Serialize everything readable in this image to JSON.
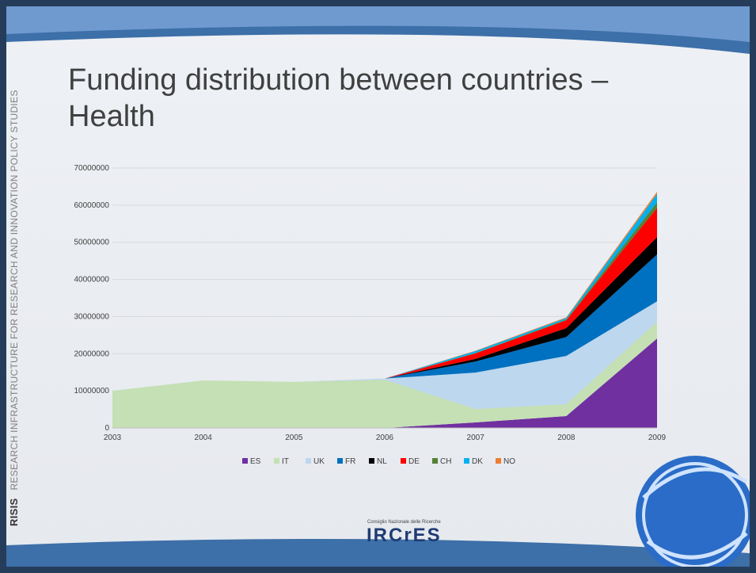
{
  "slide": {
    "side_text": "RESEARCH INFRASTRUCTURE FOR RESEARCH AND INNOVATION POLICY STUDIES",
    "side_brand": "RISIS",
    "logo_caption": "Consiglio Nazionale delle Ricerche",
    "logo_text": "IRCrES"
  },
  "chart_data": {
    "type": "area",
    "stacked": true,
    "title": "Funding distribution between countries – Health",
    "x": [
      2003,
      2004,
      2005,
      2006,
      2007,
      2008,
      2009
    ],
    "xlim": [
      2003,
      2009
    ],
    "xticks": [
      2003,
      2004,
      2005,
      2006,
      2007,
      2008,
      2009
    ],
    "ylim": [
      0,
      70000000
    ],
    "yticks": [
      0,
      10000000,
      20000000,
      30000000,
      40000000,
      50000000,
      60000000,
      70000000
    ],
    "grid": true,
    "legend": "bottom",
    "series": [
      {
        "name": "ES",
        "color": "#7030a0",
        "values": [
          0,
          0,
          0,
          0,
          1500000,
          3200000,
          24100000
        ]
      },
      {
        "name": "IT",
        "color": "#c4e0b4",
        "values": [
          10000000,
          12800000,
          12400000,
          13000000,
          3600000,
          3200000,
          4500000
        ]
      },
      {
        "name": "UK",
        "color": "#bdd7ee",
        "values": [
          0,
          0,
          0,
          300000,
          9800000,
          13000000,
          5500000
        ]
      },
      {
        "name": "FR",
        "color": "#0070c0",
        "values": [
          0,
          0,
          0,
          0,
          3000000,
          5100000,
          12600000
        ]
      },
      {
        "name": "NL",
        "color": "#000000",
        "values": [
          0,
          0,
          0,
          0,
          700000,
          2400000,
          4700000
        ]
      },
      {
        "name": "DE",
        "color": "#ff0000",
        "values": [
          0,
          0,
          0,
          0,
          1500000,
          2100000,
          7900000
        ]
      },
      {
        "name": "CH",
        "color": "#548235",
        "values": [
          0,
          0,
          0,
          0,
          100000,
          200000,
          1500000
        ]
      },
      {
        "name": "DK",
        "color": "#00b0f0",
        "values": [
          0,
          0,
          0,
          0,
          500000,
          400000,
          2200000
        ]
      },
      {
        "name": "NO",
        "color": "#ed7d31",
        "values": [
          0,
          0,
          0,
          0,
          100000,
          200000,
          600000
        ]
      }
    ]
  }
}
